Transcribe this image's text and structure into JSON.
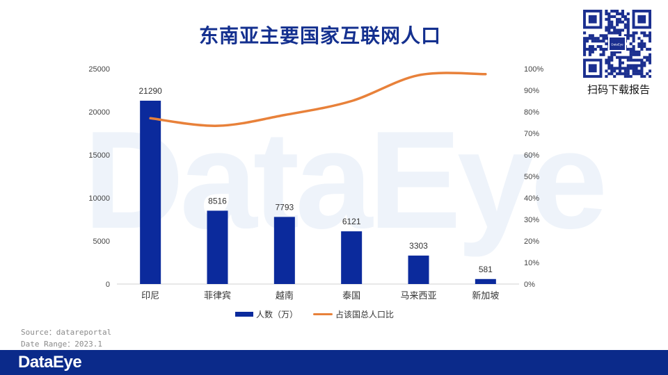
{
  "title": "东南亚主要国家互联网人口",
  "watermark": "DataEye",
  "qr": {
    "inner_label": "DataEye",
    "caption": "扫码下载报告"
  },
  "source_lines": [
    "Source：datareportal",
    "Date Range：2023.1"
  ],
  "footer": {
    "logo": "DataEye"
  },
  "colors": {
    "bar": "#0b2a9c",
    "line": "#e8813a",
    "title": "#14308f",
    "footer": "#0b2a8a"
  },
  "chart_data": {
    "type": "bar+line",
    "categories": [
      "印尼",
      "菲律宾",
      "越南",
      "泰国",
      "马来西亚",
      "新加坡"
    ],
    "series": [
      {
        "name": "人数（万）",
        "type": "bar",
        "axis": "left",
        "values": [
          21290,
          8516,
          7793,
          6121,
          3303,
          581
        ]
      },
      {
        "name": "占该国总人口比",
        "type": "line",
        "axis": "right",
        "values": [
          77,
          73.5,
          78.5,
          85,
          97,
          97.5
        ]
      }
    ],
    "y_left": {
      "min": 0,
      "max": 25000,
      "ticks": [
        "0",
        "5000",
        "10000",
        "15000",
        "20000",
        "25000"
      ]
    },
    "y_right": {
      "min": 0,
      "max": 100,
      "ticks": [
        "0%",
        "10%",
        "20%",
        "30%",
        "40%",
        "50%",
        "60%",
        "70%",
        "80%",
        "90%",
        "100%"
      ]
    },
    "legend_position": "bottom",
    "grid": false
  }
}
